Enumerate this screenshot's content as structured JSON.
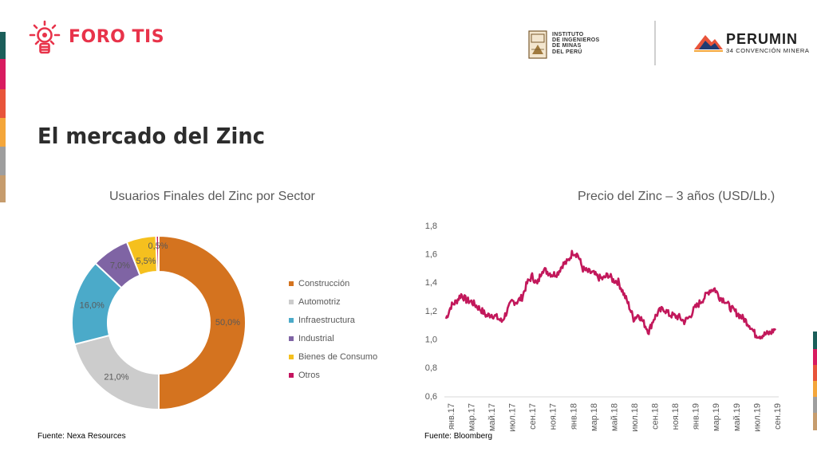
{
  "brand": {
    "name": "FORO TIS",
    "color": "#e8334a"
  },
  "iim": {
    "lines": [
      "INSTITUTO",
      "DE INGENIEROS",
      "DE MINAS",
      "DEL PERÚ"
    ]
  },
  "perumin": {
    "name": "PERUMIN",
    "subtitle": "34 CONVENCIÓN MINERA"
  },
  "page_title": "El mercado del Zinc",
  "stripe_colors": [
    "#1b5e5a",
    "#d81b60",
    "#e8543a",
    "#f4a63a",
    "#9e9e9e",
    "#c69c6d"
  ],
  "chart_data": [
    {
      "type": "pie",
      "variant": "donut",
      "title": "Usuarios Finales del Zinc por Sector",
      "legend_position": "right",
      "slices": [
        {
          "name": "Construcción",
          "value": 50.0,
          "label": "50,0%",
          "color": "#d4731f"
        },
        {
          "name": "Automotriz",
          "value": 21.0,
          "label": "21,0%",
          "color": "#cccccc"
        },
        {
          "name": "Infraestructura",
          "value": 16.0,
          "label": "16,0%",
          "color": "#4baac9"
        },
        {
          "name": "Industrial",
          "value": 7.0,
          "label": "7,0%",
          "color": "#7f64a4"
        },
        {
          "name": "Bienes de Consumo",
          "value": 5.5,
          "label": "5,5%",
          "color": "#f5c01e"
        },
        {
          "name": "Otros",
          "value": 0.5,
          "label": "0,5%",
          "color": "#c4145f"
        }
      ]
    },
    {
      "type": "line",
      "title": "Precio del Zinc – 3 años (USD/Lb.)",
      "ylim": [
        0.6,
        1.8
      ],
      "yticks": [
        "1,8",
        "1,6",
        "1,4",
        "1,2",
        "1,0",
        "0,8",
        "0,6"
      ],
      "ytick_values": [
        1.8,
        1.6,
        1.4,
        1.2,
        1.0,
        0.8,
        0.6
      ],
      "xticks": [
        "янв.17",
        "мар.17",
        "май.17",
        "июл.17",
        "сен.17",
        "ноя.17",
        "янв.18",
        "мар.18",
        "май.18",
        "июл.18",
        "сен.18",
        "ноя.18",
        "янв.19",
        "мар.19",
        "май.19",
        "июл.19",
        "сен.19"
      ],
      "color": "#c2185b",
      "series": [
        {
          "x": [
            "2017-01",
            "2017-01",
            "2017-02",
            "2017-02",
            "2017-03",
            "2017-03",
            "2017-04",
            "2017-04",
            "2017-05",
            "2017-05",
            "2017-06",
            "2017-06",
            "2017-07",
            "2017-07",
            "2017-08",
            "2017-08",
            "2017-09",
            "2017-09",
            "2017-10",
            "2017-10",
            "2017-11",
            "2017-11",
            "2017-12",
            "2017-12",
            "2018-01",
            "2018-01",
            "2018-02",
            "2018-02",
            "2018-03",
            "2018-03",
            "2018-04",
            "2018-04",
            "2018-05",
            "2018-05",
            "2018-06",
            "2018-06",
            "2018-07",
            "2018-07",
            "2018-08",
            "2018-08",
            "2018-09",
            "2018-09",
            "2018-10",
            "2018-10",
            "2018-11",
            "2018-11",
            "2018-12",
            "2018-12",
            "2019-01",
            "2019-01",
            "2019-02",
            "2019-02",
            "2019-03",
            "2019-03",
            "2019-04",
            "2019-04",
            "2019-05",
            "2019-05",
            "2019-06",
            "2019-06",
            "2019-07",
            "2019-07",
            "2019-08",
            "2019-08",
            "2019-09",
            "2019-09"
          ],
          "values": [
            1.15,
            1.24,
            1.27,
            1.32,
            1.28,
            1.27,
            1.24,
            1.21,
            1.17,
            1.18,
            1.16,
            1.13,
            1.2,
            1.27,
            1.27,
            1.3,
            1.4,
            1.45,
            1.39,
            1.5,
            1.48,
            1.46,
            1.47,
            1.53,
            1.55,
            1.62,
            1.6,
            1.5,
            1.48,
            1.47,
            1.44,
            1.43,
            1.46,
            1.42,
            1.41,
            1.33,
            1.25,
            1.15,
            1.18,
            1.12,
            1.06,
            1.15,
            1.2,
            1.22,
            1.18,
            1.17,
            1.16,
            1.13,
            1.16,
            1.22,
            1.26,
            1.3,
            1.35,
            1.36,
            1.3,
            1.28,
            1.23,
            1.2,
            1.17,
            1.14,
            1.1,
            1.04,
            1.03,
            1.04,
            1.05,
            1.08
          ]
        }
      ]
    }
  ],
  "sources": {
    "left": "Fuente: Nexa Resources",
    "right": "Fuente: Bloomberg"
  }
}
